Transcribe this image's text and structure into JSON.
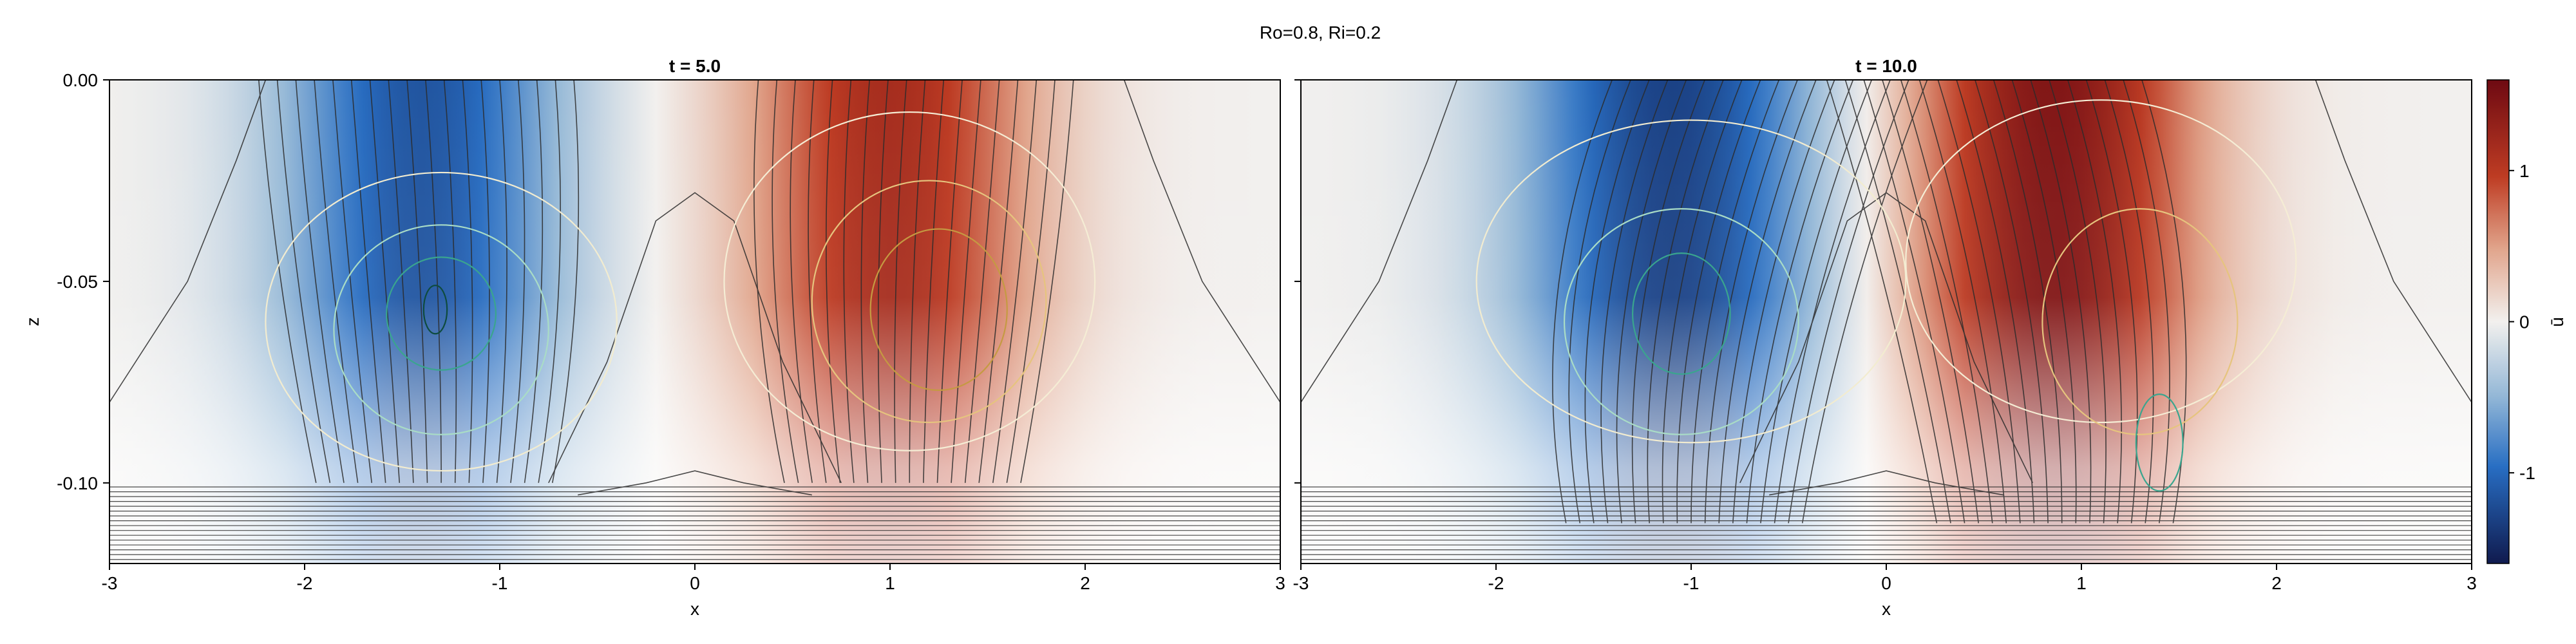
{
  "figure": {
    "title": "Ro=0.8, Ri=0.2"
  },
  "colorbar": {
    "label": "ū",
    "ticks": [
      "1",
      "0",
      "-1"
    ],
    "tick_values": [
      1,
      0,
      -1
    ],
    "range": [
      -1.6,
      1.6
    ]
  },
  "colors": {
    "positive": "#6e0a12",
    "mid": "#f2f0ee",
    "negative": "#101a4e"
  },
  "chart_data": [
    {
      "type": "heatmap",
      "title": "t = 5.0",
      "xlabel": "x",
      "ylabel": "z",
      "xlim": [
        -3,
        3
      ],
      "ylim": [
        -0.12,
        0.0
      ],
      "xticks": [
        -3,
        -2,
        -1,
        0,
        1,
        2,
        3
      ],
      "xtick_labels": [
        "-3",
        "-2",
        "-1",
        "0",
        "1",
        "2",
        "3"
      ],
      "yticks": [
        0.0,
        -0.05,
        -0.1
      ],
      "ytick_labels": [
        "0.00",
        "-0.05",
        "-0.10"
      ],
      "field": {
        "name": "ū",
        "negative_lobe": {
          "x_center": -1.4,
          "amplitude": -1.15,
          "x_width": 0.75,
          "z_depth": 0.1
        },
        "positive_lobe": {
          "x_center": 1.0,
          "amplitude": 1.15,
          "x_width": 0.75,
          "z_depth": 0.1
        }
      },
      "streamlines": {
        "color": "#2b2b2b",
        "count": 18,
        "mixed_layer_depth": -0.1
      },
      "contours": [
        {
          "x": -1.3,
          "z": -0.06,
          "rx": 0.9,
          "rz": 0.037,
          "color": "#f2ecd0"
        },
        {
          "x": -1.3,
          "z": -0.062,
          "rx": 0.55,
          "rz": 0.026,
          "color": "#a9dcc6"
        },
        {
          "x": -1.3,
          "z": -0.058,
          "rx": 0.28,
          "rz": 0.014,
          "color": "#3aa58e"
        },
        {
          "x": -1.33,
          "z": -0.057,
          "rx": 0.06,
          "rz": 0.006,
          "color": "#0e4b3e"
        },
        {
          "x": 1.1,
          "z": -0.05,
          "rx": 0.95,
          "rz": 0.042,
          "color": "#f5edd5"
        },
        {
          "x": 1.2,
          "z": -0.055,
          "rx": 0.6,
          "rz": 0.03,
          "color": "#e6c47e"
        },
        {
          "x": 1.25,
          "z": -0.057,
          "rx": 0.35,
          "rz": 0.02,
          "color": "#c59a42"
        }
      ]
    },
    {
      "type": "heatmap",
      "title": "t = 10.0",
      "xlabel": "x",
      "ylabel": "z",
      "xlim": [
        -3,
        3
      ],
      "ylim": [
        -0.12,
        0.0
      ],
      "xticks": [
        -3,
        -2,
        -1,
        0,
        1,
        2,
        3
      ],
      "xtick_labels": [
        "-3",
        "-2",
        "-1",
        "0",
        "1",
        "2",
        "3"
      ],
      "yticks": [
        0.0,
        -0.05,
        -0.1
      ],
      "ytick_labels": [
        "0.00",
        "-0.05",
        "-0.10"
      ],
      "field": {
        "name": "ū",
        "negative_lobe": {
          "x_center": -1.1,
          "amplitude": -1.3,
          "x_width": 0.8,
          "z_depth": 0.09
        },
        "positive_lobe": {
          "x_center": 0.85,
          "amplitude": 1.45,
          "x_width": 0.75,
          "z_depth": 0.09
        }
      },
      "streamlines": {
        "color": "#2b2b2b",
        "count": 18,
        "mixed_layer_depth": -0.11
      },
      "contours": [
        {
          "x": -1.0,
          "z": -0.05,
          "rx": 1.1,
          "rz": 0.04,
          "color": "#f2ecd0"
        },
        {
          "x": -1.05,
          "z": -0.06,
          "rx": 0.6,
          "rz": 0.028,
          "color": "#a9dcc6"
        },
        {
          "x": -1.05,
          "z": -0.058,
          "rx": 0.25,
          "rz": 0.015,
          "color": "#3aa58e"
        },
        {
          "x": 1.1,
          "z": -0.045,
          "rx": 1.0,
          "rz": 0.04,
          "color": "#f5edd5"
        },
        {
          "x": 1.3,
          "z": -0.06,
          "rx": 0.5,
          "rz": 0.028,
          "color": "#e6c47e"
        },
        {
          "x": 1.4,
          "z": -0.09,
          "rx": 0.12,
          "rz": 0.012,
          "color": "#3aa58e"
        }
      ]
    }
  ]
}
